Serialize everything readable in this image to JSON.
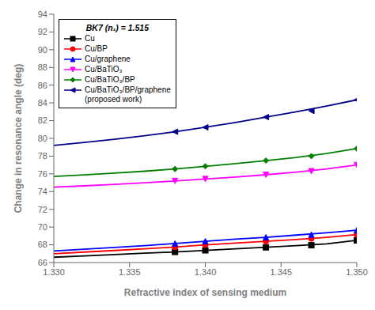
{
  "chart_data": {
    "type": "line",
    "xlabel": "Refractive index of sensing medium",
    "ylabel": "Change in resonance angle (deg)",
    "legend_title": "BK7 (n₁) = 1.515",
    "legend": "upper left",
    "grid": false,
    "xlim": [
      1.33,
      1.35
    ],
    "ylim": [
      66,
      94
    ],
    "xticks": [
      {
        "value": 1.33,
        "label": "1.330"
      },
      1.335,
      {
        "value": 1.34,
        "label": "1.340"
      },
      1.345,
      {
        "value": 1.35,
        "label": "1.350"
      }
    ],
    "yticks": [
      66,
      68,
      70,
      72,
      74,
      76,
      78,
      80,
      82,
      84,
      86,
      88,
      90,
      92,
      94
    ],
    "x": [
      1.33,
      1.332,
      1.334,
      1.336,
      1.338,
      1.34,
      1.342,
      1.344,
      1.346,
      1.348,
      1.35
    ],
    "x_markers": [
      1.338,
      1.34,
      1.344,
      1.347,
      1.35
    ],
    "series": [
      {
        "name": "Cu",
        "color": "#000000",
        "marker": "square",
        "values": [
          66.6,
          66.75,
          66.9,
          67.05,
          67.2,
          67.38,
          67.55,
          67.72,
          67.9,
          68.1,
          68.5
        ],
        "marker_values": [
          67.2,
          67.38,
          67.72,
          67.95,
          68.5
        ]
      },
      {
        "name": "Cu/BP",
        "color": "#ff0000",
        "marker": "circle",
        "values": [
          67.0,
          67.18,
          67.36,
          67.55,
          67.75,
          68.0,
          68.2,
          68.4,
          68.6,
          68.85,
          69.15
        ],
        "marker_values": [
          67.75,
          68.0,
          68.4,
          68.7,
          69.15
        ]
      },
      {
        "name": "Cu/graphene",
        "color": "#0000ff",
        "marker": "triangle-up",
        "values": [
          67.3,
          67.5,
          67.7,
          67.9,
          68.15,
          68.4,
          68.65,
          68.85,
          69.1,
          69.35,
          69.65
        ],
        "marker_values": [
          68.15,
          68.4,
          68.85,
          69.15,
          69.65
        ]
      },
      {
        "name": "Cu/BaTiO₃",
        "color": "#ff00ff",
        "marker": "triangle-down",
        "values": [
          74.5,
          74.65,
          74.82,
          75.0,
          75.2,
          75.42,
          75.65,
          75.9,
          76.2,
          76.55,
          77.0
        ],
        "marker_values": [
          75.2,
          75.42,
          75.9,
          76.3,
          77.0
        ]
      },
      {
        "name": "Cu/BaTiO₃/BP",
        "color": "#008000",
        "marker": "diamond",
        "values": [
          75.7,
          75.88,
          76.08,
          76.3,
          76.55,
          76.85,
          77.15,
          77.5,
          77.85,
          78.3,
          78.85
        ],
        "marker_values": [
          76.55,
          76.85,
          77.5,
          78.0,
          78.85
        ]
      },
      {
        "name": "Cu/BaTiO₃/BP/graphene\n(proposed work)",
        "color": "#00008b",
        "marker": "triangle-left",
        "values": [
          79.2,
          79.55,
          79.9,
          80.3,
          80.75,
          81.25,
          81.8,
          82.4,
          83.0,
          83.65,
          84.35
        ],
        "marker_values": [
          80.75,
          81.25,
          82.4,
          83.1,
          84.35
        ]
      }
    ]
  }
}
